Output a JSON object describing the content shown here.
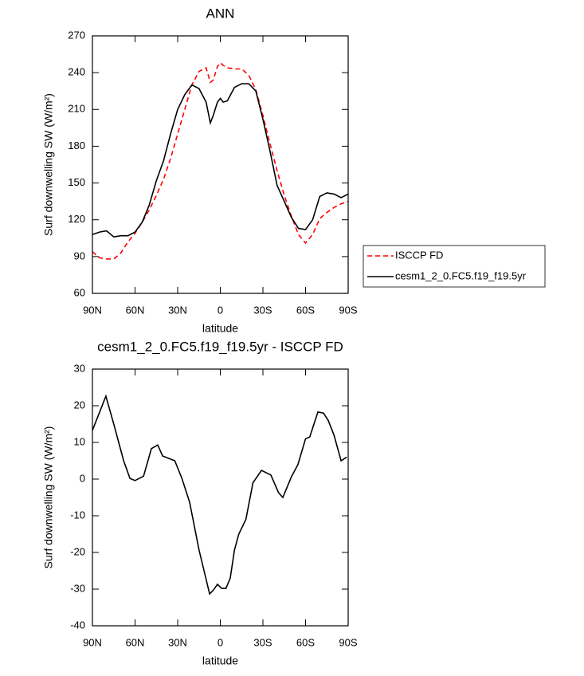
{
  "chart_data": [
    {
      "type": "line",
      "title": "ANN",
      "xlabel": "latitude",
      "ylabel": "Surf downwelling SW (W/m²)",
      "x": [
        90,
        85,
        80,
        75,
        70,
        65,
        60,
        55,
        50,
        45,
        40,
        35,
        30,
        25,
        20,
        15,
        10,
        7,
        5,
        2,
        0,
        -2,
        -5,
        -10,
        -15,
        -20,
        -25,
        -30,
        -35,
        -40,
        -45,
        -50,
        -55,
        -60,
        -65,
        -70,
        -75,
        -80,
        -85,
        -90
      ],
      "series": [
        {
          "name": "ISCCP FD",
          "color": "#ff0000",
          "dash": true,
          "values": [
            94,
            89,
            88,
            88,
            93,
            102,
            109,
            118,
            128,
            140,
            153,
            170,
            190,
            210,
            230,
            241,
            244,
            232,
            234,
            245,
            248,
            246,
            244,
            243,
            243,
            238,
            226,
            205,
            182,
            160,
            140,
            123,
            108,
            101,
            108,
            121,
            126,
            130,
            133,
            135
          ]
        },
        {
          "name": "cesm1_2_0.FC5.f19_f19.5yr",
          "color": "#000000",
          "dash": false,
          "values": [
            108,
            110,
            111,
            106,
            107,
            107,
            110,
            118,
            132,
            152,
            168,
            190,
            210,
            222,
            230,
            227,
            216,
            199,
            205,
            216,
            219,
            216,
            217,
            228,
            231,
            231,
            225,
            202,
            176,
            148,
            135,
            122,
            113,
            112,
            120,
            139,
            142,
            141,
            138,
            141
          ]
        }
      ],
      "xlim": [
        90,
        -90
      ],
      "xticks": [
        {
          "value": 90,
          "label": "90N"
        },
        {
          "value": 60,
          "label": "60N"
        },
        {
          "value": 30,
          "label": "30N"
        },
        0,
        {
          "value": -30,
          "label": "30S"
        },
        {
          "value": -60,
          "label": "60S"
        },
        {
          "value": -90,
          "label": "90S"
        }
      ],
      "ylim": [
        60,
        270
      ],
      "yticks": [
        60,
        90,
        120,
        150,
        180,
        210,
        240,
        270
      ],
      "legend": "right"
    },
    {
      "type": "line",
      "title": "cesm1_2_0.FC5.f19_f19.5yr - ISCCP FD",
      "xlabel": "latitude",
      "ylabel": "Surf downwelling SW (W/m²)",
      "x": [
        90,
        80.5,
        75,
        68,
        63.6,
        60,
        54,
        48.5,
        44,
        40.6,
        32,
        27,
        21.6,
        15,
        7.5,
        4.7,
        2,
        -1,
        -4,
        -7,
        -10,
        -13,
        -18,
        -23,
        -29,
        -35.6,
        -41,
        -44,
        -50,
        -54.7,
        -60,
        -63,
        -68.7,
        -72.6,
        -76,
        -80,
        -85,
        -89
      ],
      "series": [
        {
          "color": "#000000",
          "dash": false,
          "values": [
            13.3,
            22.6,
            15,
            5,
            0.2,
            -0.4,
            0.8,
            8.3,
            9.3,
            6.3,
            5,
            0.2,
            -6.3,
            -19.3,
            -31.3,
            -30.2,
            -28.7,
            -29.8,
            -29.8,
            -27,
            -19.3,
            -15,
            -11,
            -1,
            2.4,
            1.1,
            -3.7,
            -5,
            0.6,
            4,
            11,
            11.5,
            18.3,
            18,
            16,
            12,
            5,
            6
          ]
        }
      ],
      "xlim": [
        90,
        -90
      ],
      "xticks": [
        {
          "value": 90,
          "label": "90N"
        },
        {
          "value": 60,
          "label": "60N"
        },
        {
          "value": 30,
          "label": "30N"
        },
        0,
        {
          "value": -30,
          "label": "30S"
        },
        {
          "value": -60,
          "label": "60S"
        },
        {
          "value": -90,
          "label": "90S"
        }
      ],
      "ylim": [
        -40,
        30
      ],
      "yticks": [
        -40,
        -30,
        -20,
        -10,
        0,
        10,
        20,
        30
      ]
    }
  ]
}
